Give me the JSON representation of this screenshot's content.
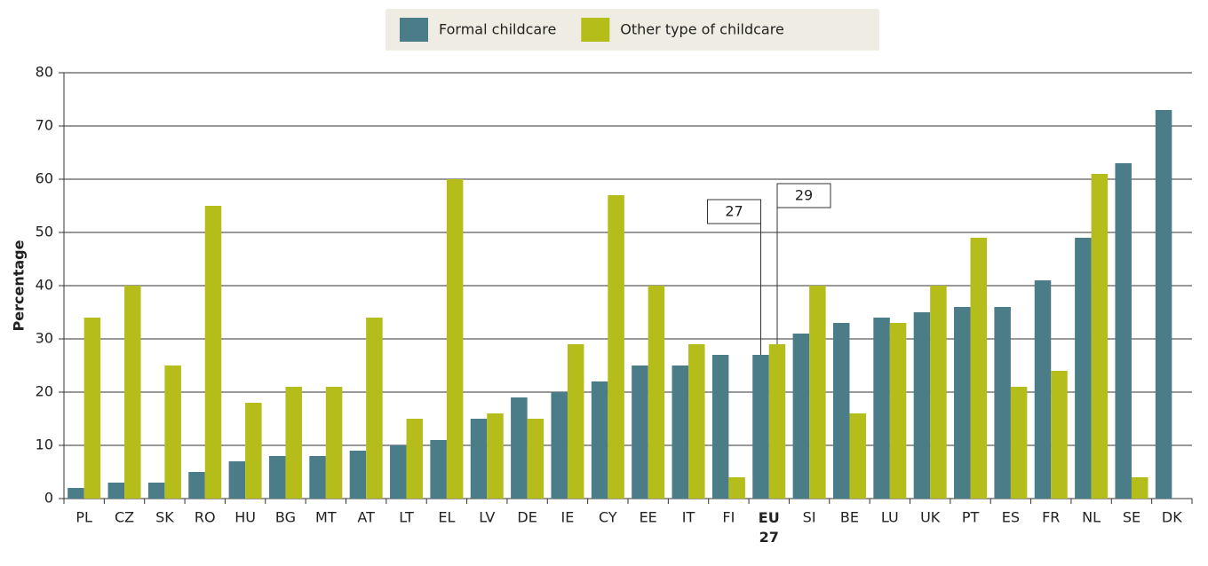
{
  "chart_data": {
    "type": "bar",
    "categories": [
      "PL",
      "CZ",
      "SK",
      "RO",
      "HU",
      "BG",
      "MT",
      "AT",
      "LT",
      "EL",
      "LV",
      "DE",
      "IE",
      "CY",
      "EE",
      "IT",
      "FI",
      "EU 27",
      "SI",
      "BE",
      "LU",
      "UK",
      "PT",
      "ES",
      "FR",
      "NL",
      "SE",
      "DK"
    ],
    "series": [
      {
        "name": "Formal childcare",
        "color": "#4a7d87",
        "values": [
          2,
          3,
          3,
          5,
          7,
          8,
          8,
          9,
          10,
          11,
          15,
          19,
          20,
          22,
          25,
          25,
          27,
          27,
          31,
          33,
          34,
          35,
          36,
          36,
          41,
          49,
          63,
          73
        ]
      },
      {
        "name": "Other type of childcare",
        "color": "#b5bd1a",
        "values": [
          34,
          40,
          25,
          55,
          18,
          21,
          21,
          34,
          15,
          60,
          16,
          15,
          29,
          57,
          40,
          29,
          4,
          29,
          40,
          16,
          33,
          40,
          49,
          21,
          24,
          61,
          4,
          null
        ]
      }
    ],
    "highlight": "EU 27",
    "y_label": "Percentage",
    "ylim": [
      0,
      80
    ],
    "yticks": [
      0,
      10,
      20,
      30,
      40,
      50,
      60,
      70,
      80
    ],
    "grid": true,
    "legend": "top"
  }
}
